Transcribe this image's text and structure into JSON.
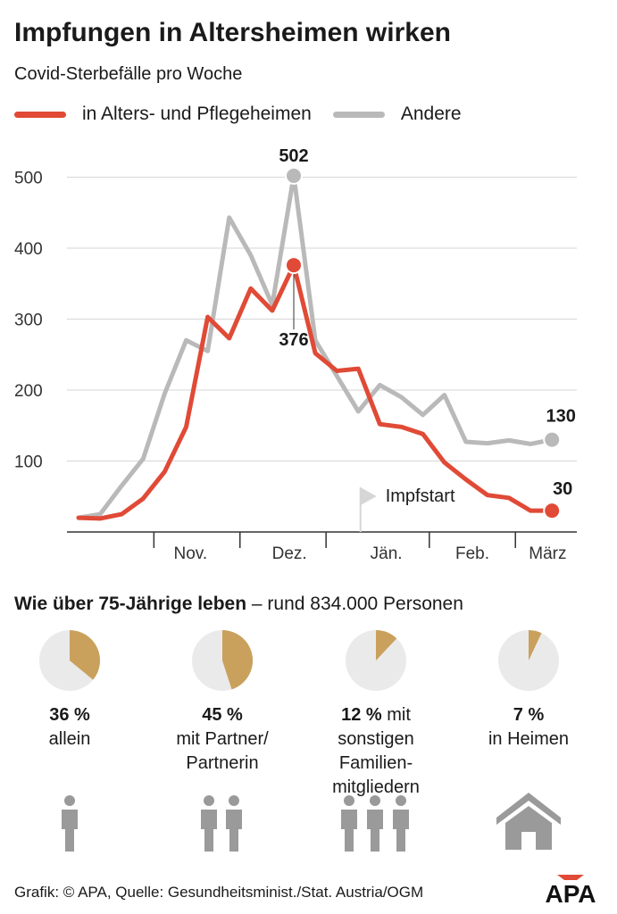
{
  "title": "Impfungen in Altersheimen wirken",
  "subtitle": "Covid-Sterbefälle pro Woche",
  "colors": {
    "heime": "#e04a36",
    "andere": "#b9b9b9",
    "pie_accent": "#c9a15c",
    "pie_rest": "#eaeaea",
    "icon": "#9a9a9a"
  },
  "legend": [
    {
      "label": "in Alters- und Pflegeheimen",
      "color": "#e04a36"
    },
    {
      "label": "Andere",
      "color": "#b9b9b9"
    }
  ],
  "chart_data": {
    "type": "line",
    "ylim": [
      0,
      520
    ],
    "yticks": [
      100,
      200,
      300,
      400,
      500
    ],
    "ytick_labels": [
      "100",
      "200",
      "300",
      "400",
      "500"
    ],
    "grid": true,
    "x": [
      0,
      1,
      2,
      3,
      4,
      5,
      6,
      7,
      8,
      9,
      10,
      11,
      12,
      13,
      14,
      15,
      16,
      17,
      18,
      19,
      20,
      21,
      22
    ],
    "x_months": [
      {
        "label": "Nov.",
        "center": 5.2
      },
      {
        "label": "Dez.",
        "center": 9.8
      },
      {
        "label": "Jän.",
        "center": 14.3
      },
      {
        "label": "Feb.",
        "center": 18.3
      },
      {
        "label": "März",
        "center": 21.8
      }
    ],
    "x_tick_positions": [
      3.5,
      7.5,
      11.5,
      16.3,
      20.3
    ],
    "series": [
      {
        "name": "Andere",
        "values": [
          20,
          25,
          65,
          103,
          195,
          270,
          255,
          443,
          390,
          320,
          502,
          270,
          220,
          170,
          207,
          190,
          165,
          193,
          127,
          125,
          129,
          124,
          130
        ]
      },
      {
        "name": "in Alters- und Pflegeheimen",
        "values": [
          20,
          19,
          25,
          47,
          85,
          148,
          303,
          273,
          343,
          312,
          376,
          252,
          227,
          230,
          152,
          148,
          138,
          98,
          74,
          52,
          48,
          30,
          30
        ]
      }
    ],
    "annotations": [
      {
        "label": "502",
        "series": "Andere",
        "index": 10
      },
      {
        "label": "376",
        "series": "in Alters- und Pflegeheimen",
        "index": 10
      },
      {
        "label": "130",
        "series": "Andere",
        "index": 22
      },
      {
        "label": "30",
        "series": "in Alters- und Pflegeheimen",
        "index": 22
      }
    ],
    "marker": {
      "label": "Impfstart",
      "x": 13.1
    }
  },
  "section": {
    "title_bold": "Wie über 75-Jährige leben",
    "title_rest": " – rund 834.000 Personen"
  },
  "pies": [
    {
      "value": 36,
      "pct": "36 %",
      "line1": "allein",
      "line2": "",
      "line3": "",
      "icon": "one-person-icon"
    },
    {
      "value": 45,
      "pct": "45 %",
      "line1": "mit Partner/",
      "line2": "Partnerin",
      "line3": "",
      "icon": "two-persons-icon"
    },
    {
      "value": 12,
      "pct": "12 %",
      "line1": "sonstigen",
      "line2": "Familien-",
      "line3": "mitgliedern",
      "suffix": " mit",
      "icon": "three-persons-icon"
    },
    {
      "value": 7,
      "pct": "7 %",
      "line1": "in Heimen",
      "line2": "",
      "line3": "",
      "icon": "house-icon"
    }
  ],
  "footer": "Grafik: © APA, Quelle: Gesundheitsminist./Stat. Austria/OGM",
  "logo": "APA"
}
